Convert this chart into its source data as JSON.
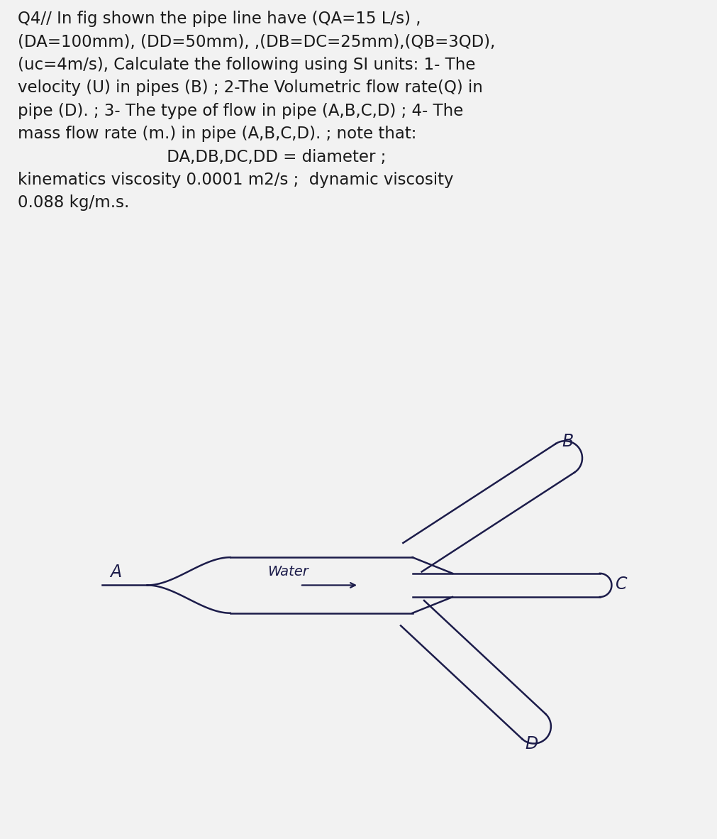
{
  "title_lines": [
    "Q4// In fig shown the pipe line have (QA=15 L/s) ,",
    "(DA=100mm), (DD=50mm), ,(DB=DC=25mm),(QB=3QD),",
    "(uc=4m/s), Calculate the following using SI units: 1- The",
    "velocity (U) in pipes (B) ; 2-The Volumetric flow rate(Q) in",
    "pipe (D). ; 3- The type of flow in pipe (A,B,C,D) ; 4- The",
    "mass flow rate (m.) in pipe (A,B,C,D). ; note that:",
    "                             DA,DB,DC,DD = diameter ;",
    "kinematics viscosity 0.0001 m2/s ;  dynamic viscosity",
    "0.088 kg/m.s."
  ],
  "fig_bg": "#f2f2f2",
  "text_bg": "#f2f2f2",
  "diagram_bg": "#d8d8d8",
  "pipe_color": "#1c1c4a",
  "label_color": "#1c1c4a",
  "text_color": "#1a1a1a",
  "water_label": "Water",
  "text_fontsize": 16.5,
  "label_fontsize": 17,
  "lw": 1.8
}
